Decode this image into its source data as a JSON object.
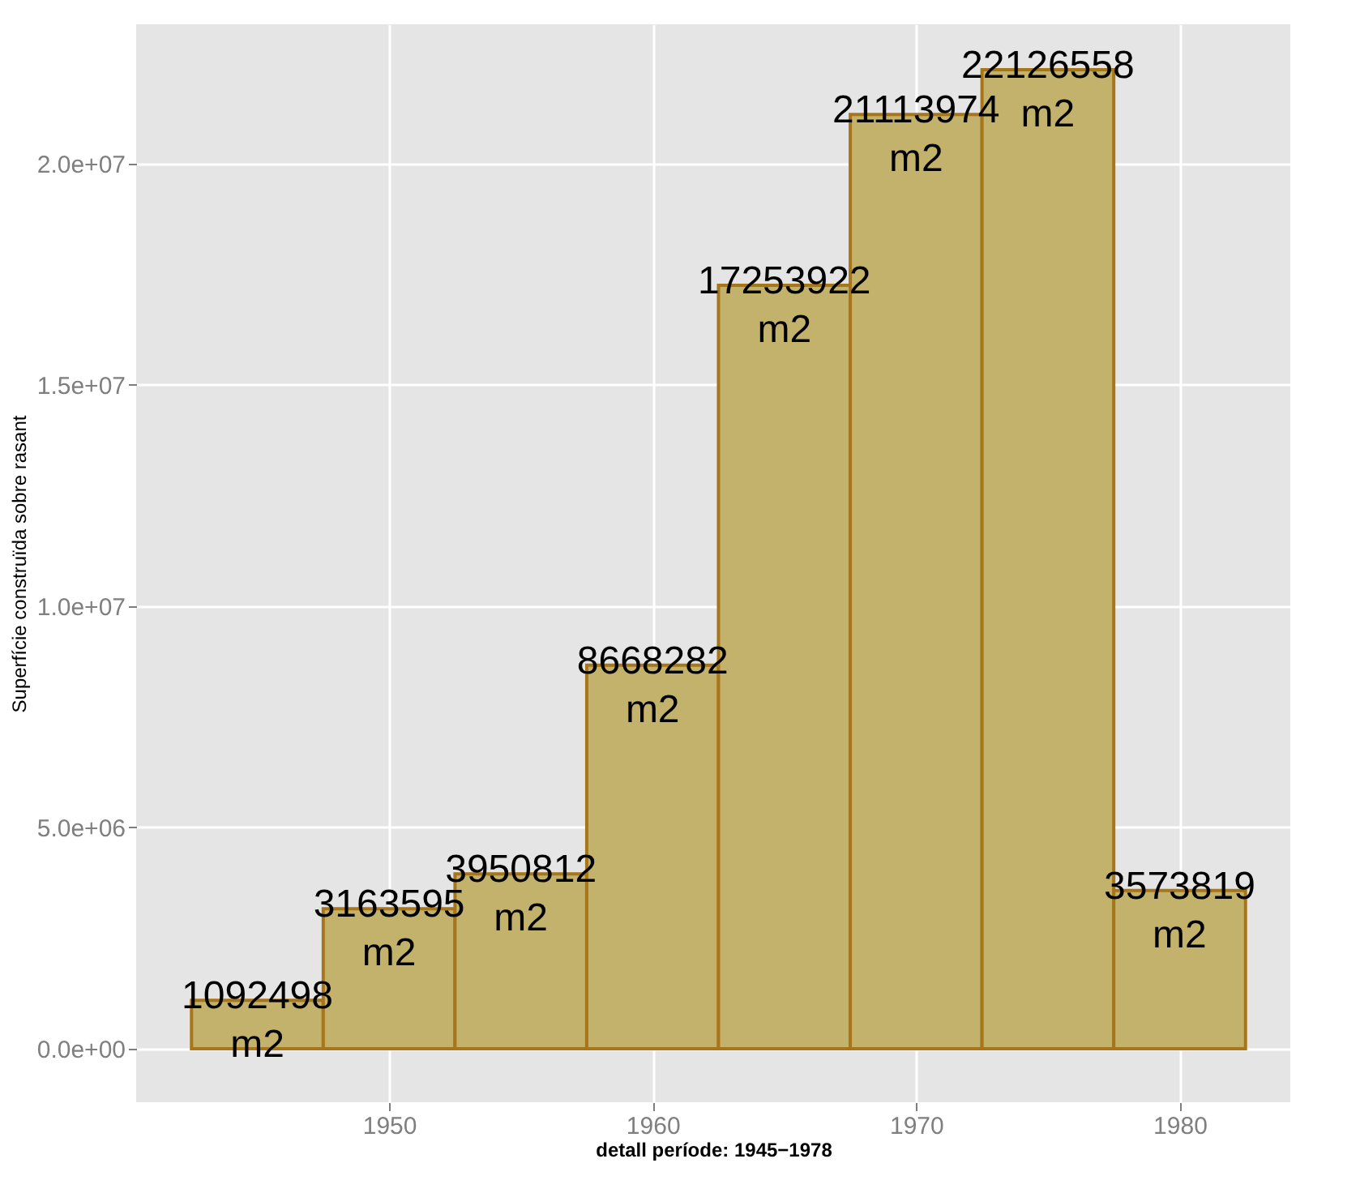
{
  "chart_data": {
    "type": "histogram",
    "xlabel": "detall període: 1945−1978",
    "ylabel": "Superfície construïda sobre rasant",
    "bins": [
      1942.5,
      1947.5,
      1952.5,
      1957.5,
      1962.5,
      1967.5,
      1972.5,
      1977.5,
      1982.5
    ],
    "values": [
      1092498,
      3163595,
      3950812,
      8668282,
      17253922,
      21113974,
      22126558,
      3573819
    ],
    "value_labels": [
      "1092498 m2",
      "3163595 m2",
      "3950812 m2",
      "8668282 m2",
      "17253922 m2",
      "21113974 m2",
      "22126558 m2",
      "3573819 m2"
    ],
    "color": "#c2b26b",
    "xlim": [
      1940.4,
      1984.2
    ],
    "xticks": [
      1950,
      1960,
      1970,
      1980
    ],
    "ylim": [
      -1210000,
      23150000
    ],
    "yticks": [
      {
        "value": 0,
        "label": "0.0e+00"
      },
      {
        "value": 5000000,
        "label": "5.0e+06"
      },
      {
        "value": 10000000,
        "label": "1.0e+07"
      },
      {
        "value": 15000000,
        "label": "1.5e+07"
      },
      {
        "value": 20000000,
        "label": "2.0e+07"
      }
    ],
    "grid": true
  }
}
